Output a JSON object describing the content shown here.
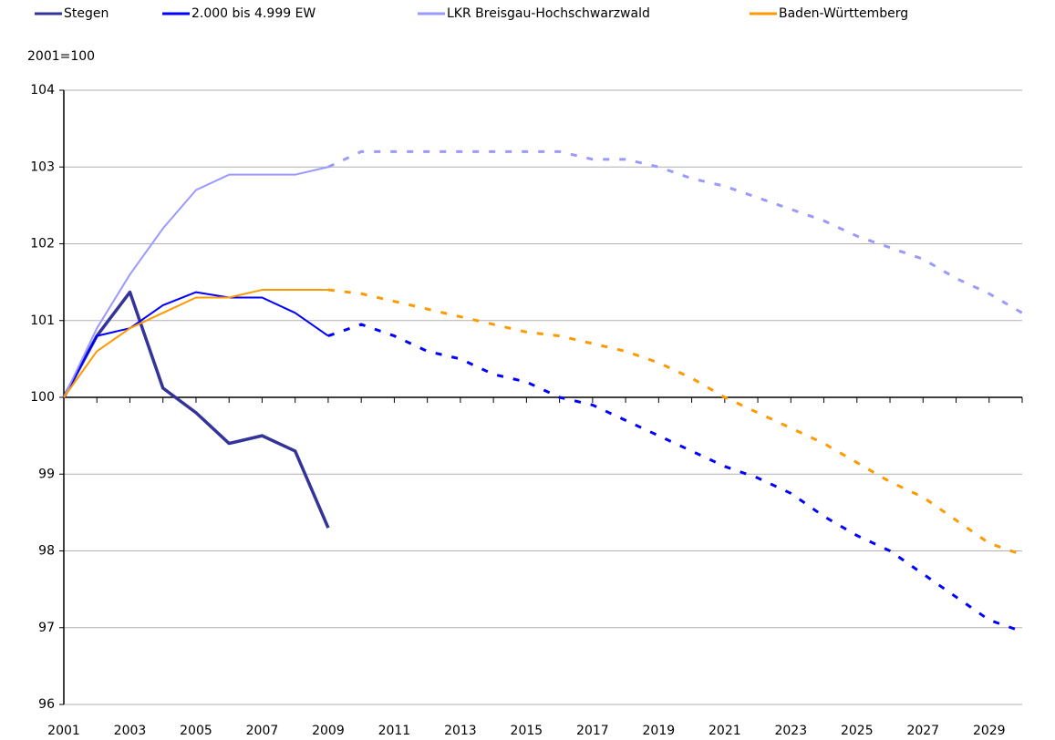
{
  "chart_data": {
    "type": "line",
    "y_axis_label": "2001=100",
    "x": [
      2001,
      2002,
      2003,
      2004,
      2005,
      2006,
      2007,
      2008,
      2009,
      2010,
      2011,
      2012,
      2013,
      2014,
      2015,
      2016,
      2017,
      2018,
      2019,
      2020,
      2021,
      2022,
      2023,
      2024,
      2025,
      2026,
      2027,
      2028,
      2029,
      2030
    ],
    "xlim": [
      2001,
      2030
    ],
    "xticks": [
      2001,
      2003,
      2005,
      2007,
      2009,
      2011,
      2013,
      2015,
      2017,
      2019,
      2021,
      2023,
      2025,
      2027,
      2029
    ],
    "ylim": [
      96,
      104
    ],
    "yticks": [
      96,
      97,
      98,
      99,
      100,
      101,
      102,
      103,
      104
    ],
    "grid": true,
    "xaxis_crosses": 100,
    "dashed_from": 2009,
    "legend": "top",
    "series": [
      {
        "name": "Stegen",
        "color": "#333399",
        "width": 3.5,
        "values": [
          100,
          100.8,
          101.37,
          100.12,
          99.8,
          99.4,
          99.5,
          99.3,
          98.3,
          null,
          null,
          null,
          null,
          null,
          null,
          null,
          null,
          null,
          null,
          null,
          null,
          null,
          null,
          null,
          null,
          null,
          null,
          null,
          null,
          null
        ]
      },
      {
        "name": "2.000 bis 4.999 EW",
        "color": "#0000ff",
        "width": 2,
        "values": [
          100,
          100.8,
          100.9,
          101.2,
          101.37,
          101.3,
          101.3,
          101.1,
          100.8,
          100.95,
          100.8,
          100.6,
          100.5,
          100.3,
          100.2,
          100.0,
          99.9,
          99.7,
          99.5,
          99.3,
          99.1,
          98.95,
          98.75,
          98.45,
          98.2,
          98.0,
          97.7,
          97.4,
          97.1,
          96.95
        ]
      },
      {
        "name": "LKR Breisgau-Hochschwarzwald",
        "color": "#9999ff",
        "width": 2,
        "values": [
          100,
          100.9,
          101.6,
          102.2,
          102.7,
          102.9,
          102.9,
          102.9,
          103.0,
          103.2,
          103.2,
          103.2,
          103.2,
          103.2,
          103.2,
          103.2,
          103.1,
          103.1,
          103.0,
          102.85,
          102.75,
          102.6,
          102.45,
          102.3,
          102.1,
          101.95,
          101.8,
          101.55,
          101.35,
          101.1
        ]
      },
      {
        "name": "Baden-Württemberg",
        "color": "#ff9900",
        "width": 2,
        "values": [
          100,
          100.6,
          100.9,
          101.1,
          101.3,
          101.3,
          101.4,
          101.4,
          101.4,
          101.35,
          101.25,
          101.15,
          101.05,
          100.95,
          100.85,
          100.8,
          100.7,
          100.6,
          100.45,
          100.25,
          100.0,
          99.8,
          99.6,
          99.4,
          99.15,
          98.9,
          98.7,
          98.4,
          98.1,
          97.95
        ]
      }
    ]
  }
}
